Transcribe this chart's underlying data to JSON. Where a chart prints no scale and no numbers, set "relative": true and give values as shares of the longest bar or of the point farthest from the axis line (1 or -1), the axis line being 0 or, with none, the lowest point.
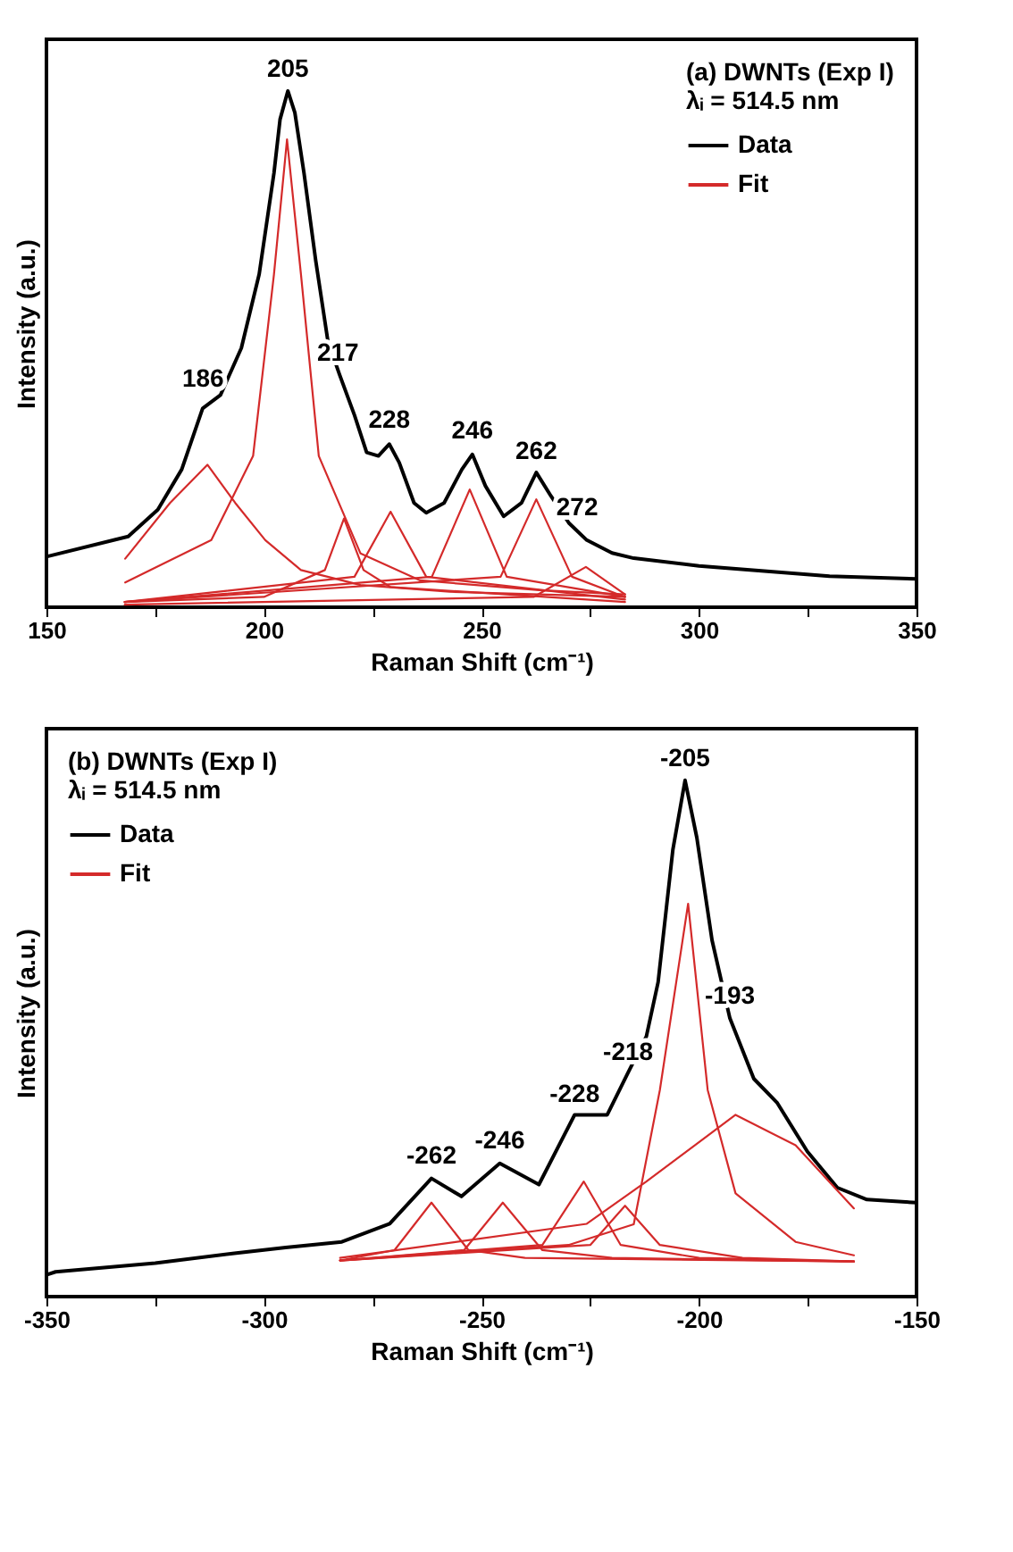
{
  "chart_data": [
    {
      "type": "line",
      "relative": true,
      "xlabel": "Raman Shift (cm⁻¹)",
      "ylabel": "Intensity (a.u.)",
      "legend_title": "(a) DWNTs (Exp I)\nλᵢ = 514.5 nm",
      "legend": "top right",
      "xlim": [
        150,
        350
      ],
      "xticks": [
        150,
        {
          "value": 175,
          "label": null
        },
        200,
        {
          "value": 225,
          "label": null
        },
        250,
        {
          "value": 275,
          "label": null
        },
        300,
        {
          "value": 325,
          "label": null
        },
        350
      ],
      "annotations": [
        {
          "text": "186",
          "x": 186,
          "y": 0.4
        },
        {
          "text": "205",
          "x": 205.5,
          "y": 1.0
        },
        {
          "text": "217",
          "x": 217,
          "y": 0.45
        },
        {
          "text": "228",
          "x": 228.8,
          "y": 0.32
        },
        {
          "text": "246",
          "x": 247.9,
          "y": 0.3
        },
        {
          "text": "262",
          "x": 262.6,
          "y": 0.26
        },
        {
          "text": "272",
          "x": 272,
          "y": 0.15
        }
      ],
      "series": [
        {
          "name": "Data",
          "color": "#000000",
          "x": [
            150,
            168.8,
            175.6,
            181.1,
            185.9,
            190,
            194.8,
            198.9,
            202.3,
            203.7,
            205.5,
            207.1,
            209.2,
            211.9,
            214.7,
            217.4,
            220.8,
            223.6,
            226.3,
            228.8,
            231.1,
            234.5,
            237.3,
            241.4,
            245.5,
            247.9,
            250.9,
            255.1,
            259.2,
            262.6,
            266,
            270.1,
            274.2,
            280,
            285,
            300,
            315,
            330,
            350
          ],
          "values": [
            0.098,
            0.137,
            0.189,
            0.267,
            0.385,
            0.411,
            0.502,
            0.645,
            0.841,
            0.945,
            1.0,
            0.958,
            0.841,
            0.671,
            0.515,
            0.45,
            0.372,
            0.3,
            0.293,
            0.316,
            0.28,
            0.202,
            0.183,
            0.202,
            0.267,
            0.296,
            0.235,
            0.176,
            0.202,
            0.261,
            0.215,
            0.163,
            0.13,
            0.105,
            0.095,
            0.08,
            0.07,
            0.06,
            0.055
          ]
        },
        {
          "name": "Fit",
          "color": "#d42a2a",
          "x": [
            168.1,
            178.4,
            187,
            193.4,
            200.3,
            208.5,
            222.2,
            242.7,
            283
          ],
          "values": [
            0.094,
            0.202,
            0.276,
            0.202,
            0.13,
            0.072,
            0.043,
            0.03,
            0.02
          ]
        },
        {
          "color": "#d42a2a",
          "x": [
            168.1,
            187.9,
            197.5,
            202.3,
            205.3,
            208.5,
            212.6,
            222.2,
            235.9,
            263.3,
            283
          ],
          "values": [
            0.048,
            0.13,
            0.293,
            0.645,
            0.906,
            0.645,
            0.293,
            0.104,
            0.052,
            0.033,
            0.025
          ]
        },
        {
          "color": "#d42a2a",
          "x": [
            168,
            200,
            214,
            218.4,
            222.9,
            229.1,
            283
          ],
          "values": [
            0.01,
            0.02,
            0.072,
            0.172,
            0.072,
            0.039,
            0.01
          ]
        },
        {
          "color": "#d42a2a",
          "x": [
            168,
            220.8,
            229.1,
            237.3,
            283
          ],
          "values": [
            0.01,
            0.059,
            0.185,
            0.059,
            0.015
          ]
        },
        {
          "color": "#d42a2a",
          "x": [
            168,
            238.6,
            247.3,
            255.8,
            283
          ],
          "values": [
            0.01,
            0.059,
            0.228,
            0.059,
            0.02
          ]
        },
        {
          "color": "#d42a2a",
          "x": [
            168,
            254.4,
            262.6,
            270.8,
            283
          ],
          "values": [
            0.01,
            0.059,
            0.209,
            0.059,
            0.02
          ]
        },
        {
          "color": "#d42a2a",
          "x": [
            168,
            262,
            274,
            283
          ],
          "values": [
            0.005,
            0.02,
            0.078,
            0.025
          ]
        }
      ]
    },
    {
      "type": "line",
      "relative": true,
      "xlabel": "Raman Shift (cm⁻¹)",
      "ylabel": "Intensity (a.u.)",
      "legend_title": "(b) DWNTs (Exp I)\nλᵢ = 514.5 nm",
      "legend": "top left",
      "xlim": [
        -350,
        -150
      ],
      "xticks": [
        -350,
        {
          "value": -325,
          "label": null
        },
        -300,
        {
          "value": -275,
          "label": null
        },
        -250,
        {
          "value": -225,
          "label": null
        },
        -200,
        {
          "value": -175,
          "label": null
        },
        -150
      ],
      "annotations": [
        {
          "text": "-262",
          "x": -261.5,
          "y": 0.23
        },
        {
          "text": "-246",
          "x": -245.8,
          "y": 0.26
        },
        {
          "text": "-228",
          "x": -228.6,
          "y": 0.35
        },
        {
          "text": "-218",
          "x": -216.3,
          "y": 0.43
        },
        {
          "text": "-205",
          "x": -203.2,
          "y": 1.0
        },
        {
          "text": "-193",
          "x": -192.9,
          "y": 0.54
        }
      ],
      "series": [
        {
          "name": "Data",
          "color": "#000000",
          "x": [
            -350,
            -347.9,
            -325,
            -306.8,
            -295,
            -282.1,
            -271.1,
            -261.5,
            -254.6,
            -245.8,
            -236.8,
            -228.6,
            -221.1,
            -216.3,
            -212.1,
            -209.4,
            -206,
            -203.2,
            -200.5,
            -197,
            -192.9,
            -187.4,
            -182,
            -175.1,
            -168.2,
            -161.4,
            -150
          ],
          "values": [
            0.042,
            0.048,
            0.065,
            0.084,
            0.095,
            0.106,
            0.141,
            0.229,
            0.194,
            0.258,
            0.217,
            0.352,
            0.352,
            0.434,
            0.504,
            0.609,
            0.866,
            1.0,
            0.889,
            0.69,
            0.539,
            0.422,
            0.375,
            0.281,
            0.211,
            0.188,
            0.182
          ]
        },
        {
          "name": "Fit",
          "color": "#d42a2a",
          "x": [
            -282.5,
            -270,
            -261.5,
            -253,
            -240,
            -164.4
          ],
          "values": [
            0.07,
            0.09,
            0.182,
            0.09,
            0.075,
            0.068
          ]
        },
        {
          "color": "#d42a2a",
          "x": [
            -282.5,
            -254,
            -245.1,
            -236,
            -220,
            -164.4
          ],
          "values": [
            0.07,
            0.09,
            0.182,
            0.09,
            0.075,
            0.068
          ]
        },
        {
          "color": "#d42a2a",
          "x": [
            -282.5,
            -236,
            -226.5,
            -218,
            -200,
            -164.4
          ],
          "values": [
            0.07,
            0.1,
            0.223,
            0.1,
            0.075,
            0.068
          ]
        },
        {
          "color": "#d42a2a",
          "x": [
            -282.5,
            -225,
            -217,
            -209,
            -190,
            -164.4
          ],
          "values": [
            0.07,
            0.1,
            0.176,
            0.1,
            0.075,
            0.068
          ]
        },
        {
          "color": "#d42a2a",
          "x": [
            -282.5,
            -230,
            -215,
            -209,
            -202.5,
            -198,
            -191.6,
            -177.8,
            -164.4
          ],
          "values": [
            0.07,
            0.1,
            0.14,
            0.4,
            0.761,
            0.4,
            0.2,
            0.106,
            0.08
          ]
        },
        {
          "color": "#d42a2a",
          "x": [
            -282.5,
            -225.8,
            -212.1,
            -191.6,
            -177.8,
            -164.4
          ],
          "values": [
            0.075,
            0.141,
            0.223,
            0.352,
            0.293,
            0.171
          ]
        }
      ]
    }
  ]
}
